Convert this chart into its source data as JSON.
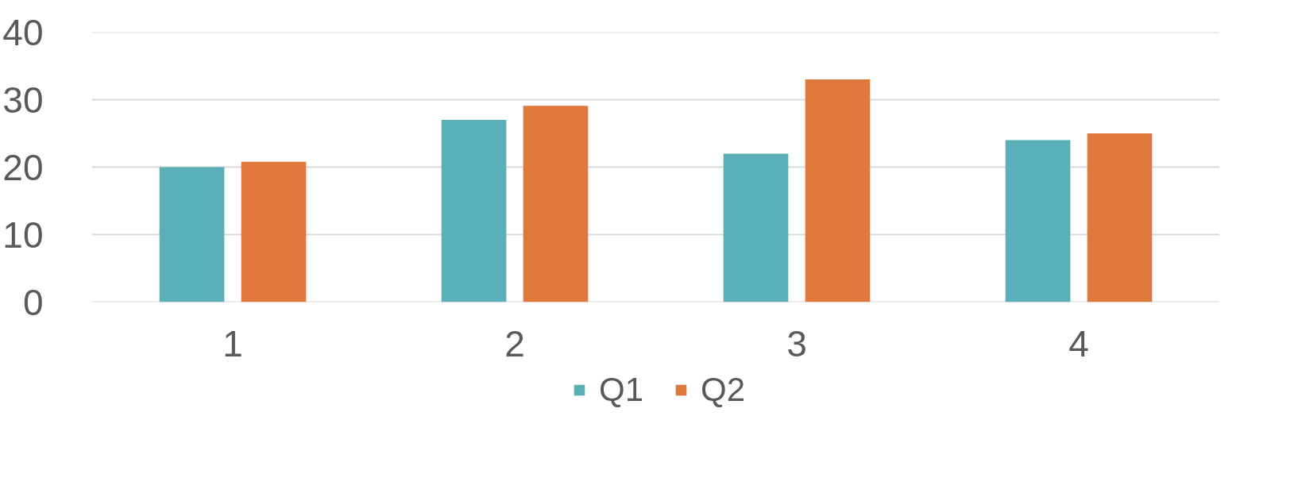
{
  "chart_data": {
    "type": "bar",
    "categories": [
      "1",
      "2",
      "3",
      "4"
    ],
    "series": [
      {
        "name": "Q1",
        "color": "#5ab0b9",
        "values": [
          20,
          27,
          22,
          24
        ]
      },
      {
        "name": "Q2",
        "color": "#e0773c",
        "values": [
          20.8,
          29.1,
          33,
          25
        ]
      }
    ],
    "ylim": [
      0,
      40
    ],
    "yticks": [
      0,
      10,
      20,
      30,
      40
    ],
    "grid": "y",
    "legend": "bottom"
  }
}
